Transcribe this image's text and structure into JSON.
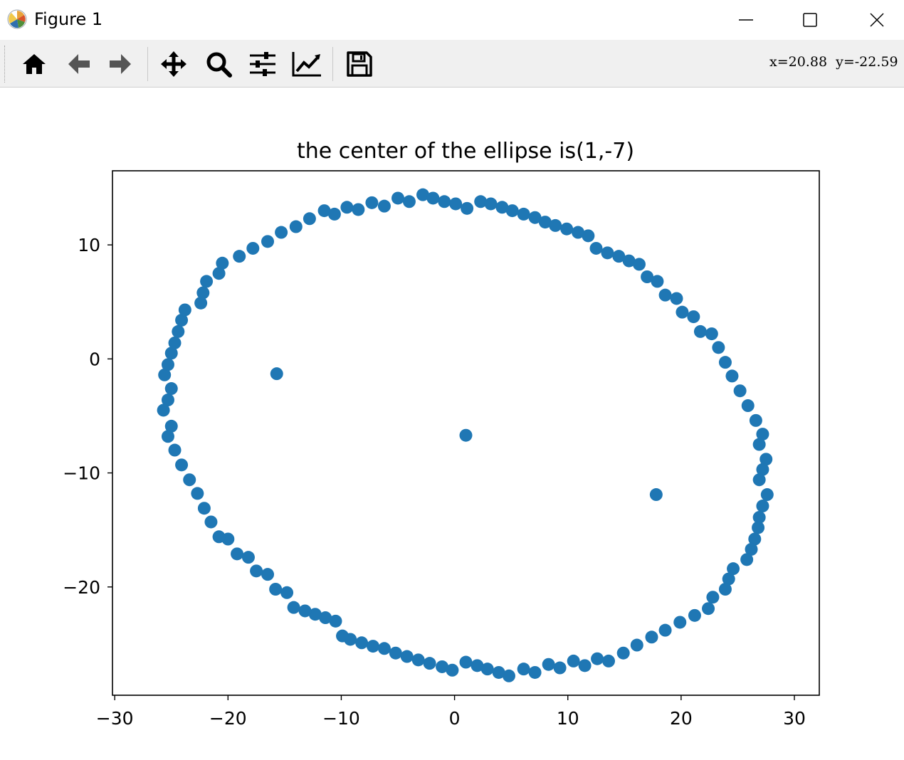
{
  "window": {
    "title": "Figure 1",
    "controls": [
      "minimize",
      "maximize",
      "close"
    ]
  },
  "toolbar": {
    "tools": [
      "home-icon",
      "back-arrow-icon",
      "forward-arrow-icon",
      "pan-icon",
      "zoom-icon",
      "configure-subplots-icon",
      "edit-axis-icon",
      "save-icon"
    ],
    "coords_label": "x=20.88  y=-22.59"
  },
  "chart_data": {
    "type": "scatter",
    "title": "the center of the ellipse is(1,-7)",
    "xlabel": "",
    "ylabel": "",
    "xlim": [
      -30.2,
      32.2
    ],
    "ylim": [
      -29.5,
      16.5
    ],
    "xticks": [
      -30,
      -20,
      -10,
      0,
      10,
      20,
      30
    ],
    "yticks": [
      -20,
      -10,
      0,
      10
    ],
    "xtick_labels": [
      "−30",
      "−20",
      "−10",
      "0",
      "10",
      "20",
      "30"
    ],
    "ytick_labels": [
      "−20",
      "−10",
      "0",
      "10"
    ],
    "grid": false,
    "color": "#1f77b4",
    "series": [
      {
        "points": [
          [
            -25.6,
            -1.4
          ],
          [
            -25.3,
            -0.5
          ],
          [
            -25.0,
            0.5
          ],
          [
            -24.7,
            1.4
          ],
          [
            -24.4,
            2.4
          ],
          [
            -24.1,
            3.4
          ],
          [
            -23.8,
            4.3
          ],
          [
            -22.4,
            4.9
          ],
          [
            -22.2,
            5.8
          ],
          [
            -21.9,
            6.8
          ],
          [
            -20.8,
            7.5
          ],
          [
            -20.5,
            8.4
          ],
          [
            -19.0,
            9.0
          ],
          [
            -17.8,
            9.7
          ],
          [
            -16.5,
            10.3
          ],
          [
            -15.3,
            11.1
          ],
          [
            -14.0,
            11.6
          ],
          [
            -12.8,
            12.3
          ],
          [
            -11.5,
            13.0
          ],
          [
            -10.6,
            12.7
          ],
          [
            -9.5,
            13.3
          ],
          [
            -8.5,
            13.1
          ],
          [
            -7.3,
            13.7
          ],
          [
            -6.2,
            13.4
          ],
          [
            -5.0,
            14.1
          ],
          [
            -4.0,
            13.8
          ],
          [
            -2.8,
            14.4
          ],
          [
            -1.9,
            14.1
          ],
          [
            -0.9,
            13.8
          ],
          [
            0.1,
            13.6
          ],
          [
            1.1,
            13.2
          ],
          [
            2.3,
            13.8
          ],
          [
            3.2,
            13.6
          ],
          [
            4.2,
            13.3
          ],
          [
            5.1,
            13.0
          ],
          [
            6.1,
            12.7
          ],
          [
            7.1,
            12.4
          ],
          [
            8.0,
            12.0
          ],
          [
            8.9,
            11.7
          ],
          [
            9.9,
            11.4
          ],
          [
            10.9,
            11.1
          ],
          [
            11.8,
            10.8
          ],
          [
            12.5,
            9.7
          ],
          [
            13.5,
            9.3
          ],
          [
            14.5,
            9.0
          ],
          [
            15.4,
            8.6
          ],
          [
            16.3,
            8.3
          ],
          [
            17.0,
            7.2
          ],
          [
            17.9,
            6.8
          ],
          [
            18.6,
            5.6
          ],
          [
            19.6,
            5.3
          ],
          [
            20.1,
            4.1
          ],
          [
            21.1,
            3.7
          ],
          [
            21.7,
            2.4
          ],
          [
            22.7,
            2.2
          ],
          [
            23.3,
            1.0
          ],
          [
            23.9,
            -0.3
          ],
          [
            24.5,
            -1.5
          ],
          [
            25.2,
            -2.8
          ],
          [
            25.9,
            -4.1
          ],
          [
            26.6,
            -5.4
          ],
          [
            27.2,
            -6.6
          ],
          [
            26.9,
            -7.5
          ],
          [
            27.5,
            -8.8
          ],
          [
            27.2,
            -9.7
          ],
          [
            26.9,
            -10.6
          ],
          [
            27.6,
            -11.9
          ],
          [
            27.2,
            -12.9
          ],
          [
            26.9,
            -13.9
          ],
          [
            26.8,
            -14.8
          ],
          [
            26.5,
            -15.8
          ],
          [
            26.2,
            -16.7
          ],
          [
            25.8,
            -17.6
          ],
          [
            24.6,
            -18.4
          ],
          [
            24.2,
            -19.3
          ],
          [
            23.9,
            -20.2
          ],
          [
            22.8,
            -20.9
          ],
          [
            22.4,
            -21.9
          ],
          [
            21.2,
            -22.5
          ],
          [
            19.9,
            -23.1
          ],
          [
            18.6,
            -23.8
          ],
          [
            17.4,
            -24.4
          ],
          [
            16.1,
            -25.1
          ],
          [
            14.9,
            -25.8
          ],
          [
            13.6,
            -26.5
          ],
          [
            12.6,
            -26.3
          ],
          [
            11.5,
            -26.9
          ],
          [
            10.5,
            -26.5
          ],
          [
            9.3,
            -27.1
          ],
          [
            8.3,
            -26.8
          ],
          [
            7.1,
            -27.5
          ],
          [
            6.1,
            -27.2
          ],
          [
            4.8,
            -27.8
          ],
          [
            3.9,
            -27.5
          ],
          [
            2.9,
            -27.2
          ],
          [
            2.0,
            -26.9
          ],
          [
            1.0,
            -26.6
          ],
          [
            -0.2,
            -27.3
          ],
          [
            -1.1,
            -27.0
          ],
          [
            -2.2,
            -26.7
          ],
          [
            -3.2,
            -26.4
          ],
          [
            -4.2,
            -26.1
          ],
          [
            -5.2,
            -25.8
          ],
          [
            -6.2,
            -25.4
          ],
          [
            -7.2,
            -25.2
          ],
          [
            -8.2,
            -24.9
          ],
          [
            -9.2,
            -24.6
          ],
          [
            -9.9,
            -24.3
          ],
          [
            -10.5,
            -23.0
          ],
          [
            -11.4,
            -22.7
          ],
          [
            -12.3,
            -22.4
          ],
          [
            -13.2,
            -22.1
          ],
          [
            -14.2,
            -21.8
          ],
          [
            -14.8,
            -20.5
          ],
          [
            -15.8,
            -20.2
          ],
          [
            -16.5,
            -18.9
          ],
          [
            -17.5,
            -18.6
          ],
          [
            -18.2,
            -17.4
          ],
          [
            -19.2,
            -17.1
          ],
          [
            -20.0,
            -15.8
          ],
          [
            -20.8,
            -15.6
          ],
          [
            -21.5,
            -14.3
          ],
          [
            -22.1,
            -13.1
          ],
          [
            -22.7,
            -11.8
          ],
          [
            -23.4,
            -10.6
          ],
          [
            -24.1,
            -9.3
          ],
          [
            -24.7,
            -8.0
          ],
          [
            -25.0,
            -5.9
          ],
          [
            -25.3,
            -6.8
          ],
          [
            -25.3,
            -3.6
          ],
          [
            -25.7,
            -4.5
          ],
          [
            -25.0,
            -2.6
          ],
          [
            1.0,
            -6.7
          ],
          [
            -15.7,
            -1.3
          ],
          [
            17.8,
            -11.9
          ]
        ]
      }
    ]
  }
}
